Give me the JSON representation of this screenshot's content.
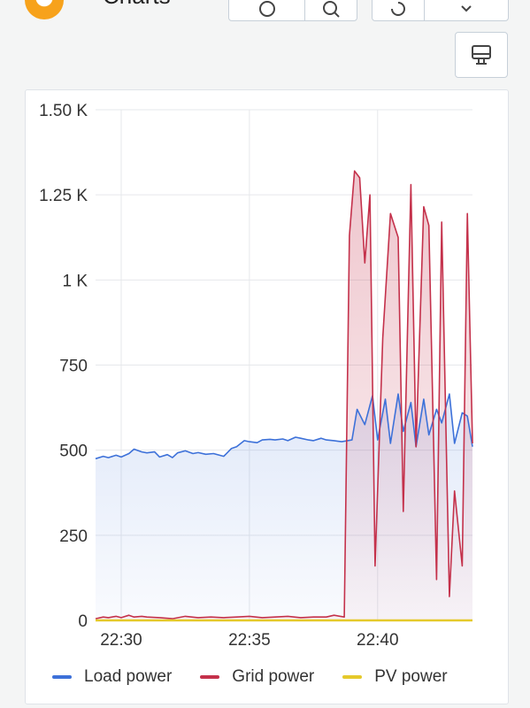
{
  "header": {
    "title": "Charts"
  },
  "colors": {
    "load": "#3d71d9",
    "grid": "#c4314b",
    "pv": "#e5c92b"
  },
  "chart_data": {
    "type": "line",
    "x_ticks": [
      "22:30",
      "22:35",
      "22:40"
    ],
    "x_tick_minutes": [
      0,
      5,
      10
    ],
    "xlim": [
      -1.0,
      13.7
    ],
    "y_ticks": [
      "0",
      "250",
      "500",
      "750",
      "1 K",
      "1.25 K",
      "1.50 K"
    ],
    "y_tick_values": [
      0,
      250,
      500,
      750,
      1000,
      1250,
      1500
    ],
    "ylim": [
      0,
      1500
    ],
    "grid": true,
    "legend_position": "bottom",
    "series": [
      {
        "name": "Load power",
        "color": "#3d71d9",
        "x": [
          -1.0,
          -0.7,
          -0.5,
          -0.2,
          0.0,
          0.3,
          0.5,
          0.8,
          1.0,
          1.3,
          1.5,
          1.8,
          2.0,
          2.2,
          2.5,
          2.8,
          3.0,
          3.3,
          3.6,
          4.0,
          4.3,
          4.5,
          4.8,
          5.0,
          5.3,
          5.5,
          5.8,
          6.0,
          6.3,
          6.5,
          6.8,
          7.0,
          7.3,
          7.5,
          7.8,
          8.0,
          8.3,
          8.6,
          9.0,
          9.2,
          9.5,
          9.8,
          10.0,
          10.3,
          10.5,
          10.8,
          11.0,
          11.3,
          11.5,
          11.8,
          12.0,
          12.3,
          12.5,
          12.8,
          13.0,
          13.3,
          13.5,
          13.7
        ],
        "values": [
          475,
          482,
          478,
          485,
          480,
          490,
          503,
          495,
          492,
          495,
          480,
          487,
          478,
          492,
          498,
          490,
          493,
          488,
          490,
          482,
          505,
          510,
          528,
          525,
          522,
          530,
          532,
          530,
          533,
          528,
          538,
          535,
          530,
          528,
          535,
          530,
          528,
          525,
          530,
          620,
          575,
          660,
          530,
          650,
          520,
          665,
          555,
          640,
          510,
          650,
          545,
          620,
          580,
          665,
          520,
          610,
          600,
          510
        ]
      },
      {
        "name": "Grid power",
        "color": "#c4314b",
        "x": [
          -1.0,
          -0.7,
          -0.5,
          -0.2,
          0.0,
          0.3,
          0.5,
          0.8,
          1.0,
          1.5,
          2.0,
          2.5,
          3.0,
          3.5,
          4.0,
          4.5,
          5.0,
          5.5,
          6.0,
          6.5,
          7.0,
          7.5,
          8.0,
          8.3,
          8.7,
          8.9,
          9.1,
          9.3,
          9.5,
          9.7,
          9.9,
          10.2,
          10.5,
          10.8,
          11.0,
          11.3,
          11.5,
          11.8,
          12.0,
          12.3,
          12.5,
          12.8,
          13.0,
          13.3,
          13.5,
          13.7
        ],
        "values": [
          5,
          10,
          8,
          12,
          8,
          15,
          10,
          12,
          10,
          8,
          5,
          12,
          8,
          10,
          8,
          10,
          12,
          8,
          10,
          12,
          8,
          10,
          10,
          15,
          10,
          1130,
          1320,
          1300,
          1050,
          1250,
          160,
          830,
          1195,
          1125,
          320,
          1280,
          510,
          1215,
          1160,
          120,
          1170,
          70,
          380,
          160,
          1195,
          520
        ]
      },
      {
        "name": "PV power",
        "color": "#e5c92b",
        "x": [
          -1.0,
          13.7
        ],
        "values": [
          0,
          0
        ]
      }
    ]
  }
}
